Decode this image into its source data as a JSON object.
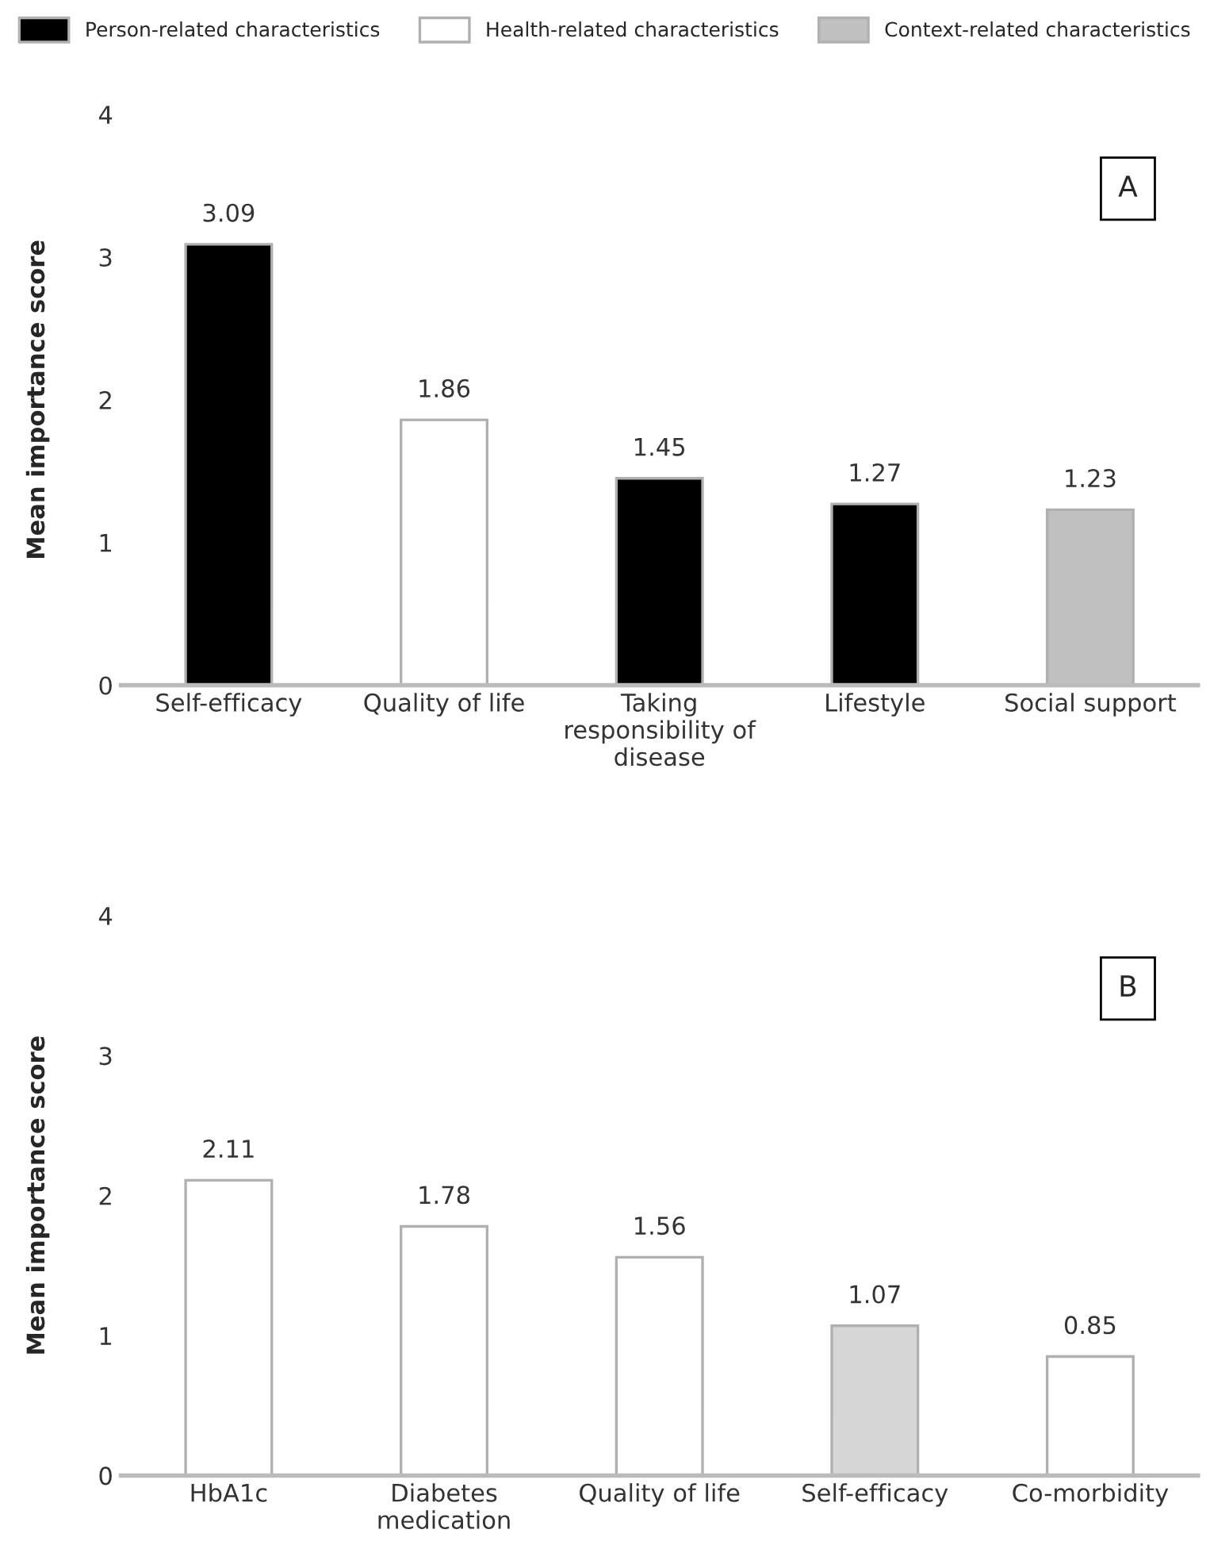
{
  "chart_data": [
    {
      "type": "bar",
      "ylabel": "Mean importance score",
      "categories": [
        "Self-efficacy",
        "Quality of life",
        "Taking\nresponsibility of\ndisease",
        "Lifestyle",
        "Social support"
      ],
      "series": [
        {
          "name": "Person-related characteristics",
          "color": "#000000",
          "values": [
            3.09,
            null,
            1.45,
            1.27,
            null
          ]
        },
        {
          "name": "Health-related characteristics",
          "color": "#ffffff",
          "values": [
            null,
            1.86,
            null,
            null,
            null
          ]
        },
        {
          "name": "Context-related characteristics",
          "color": "#c0c0c0",
          "values": [
            null,
            null,
            null,
            null,
            1.23
          ]
        }
      ],
      "ylim": [
        0,
        4
      ],
      "yticks": [
        0,
        1,
        2,
        3,
        4
      ],
      "grid": false,
      "legend": "top",
      "data_labels": true,
      "annotations": [
        "A"
      ]
    },
    {
      "type": "bar",
      "ylabel": "Mean importance score",
      "categories": [
        "HbA1c",
        "Diabetes\nmedication",
        "Quality of life",
        "Self-efficacy",
        "Co-morbidity"
      ],
      "values": [
        2.11,
        1.78,
        1.56,
        1.07,
        0.85
      ],
      "colors": [
        "#ffffff",
        "#ffffff",
        "#ffffff",
        "#d6d6d6",
        "#ffffff"
      ],
      "ylim": [
        0,
        4
      ],
      "yticks": [
        0,
        1,
        2,
        3,
        4
      ],
      "grid": false,
      "data_labels": true,
      "annotations": [
        "B"
      ]
    }
  ]
}
